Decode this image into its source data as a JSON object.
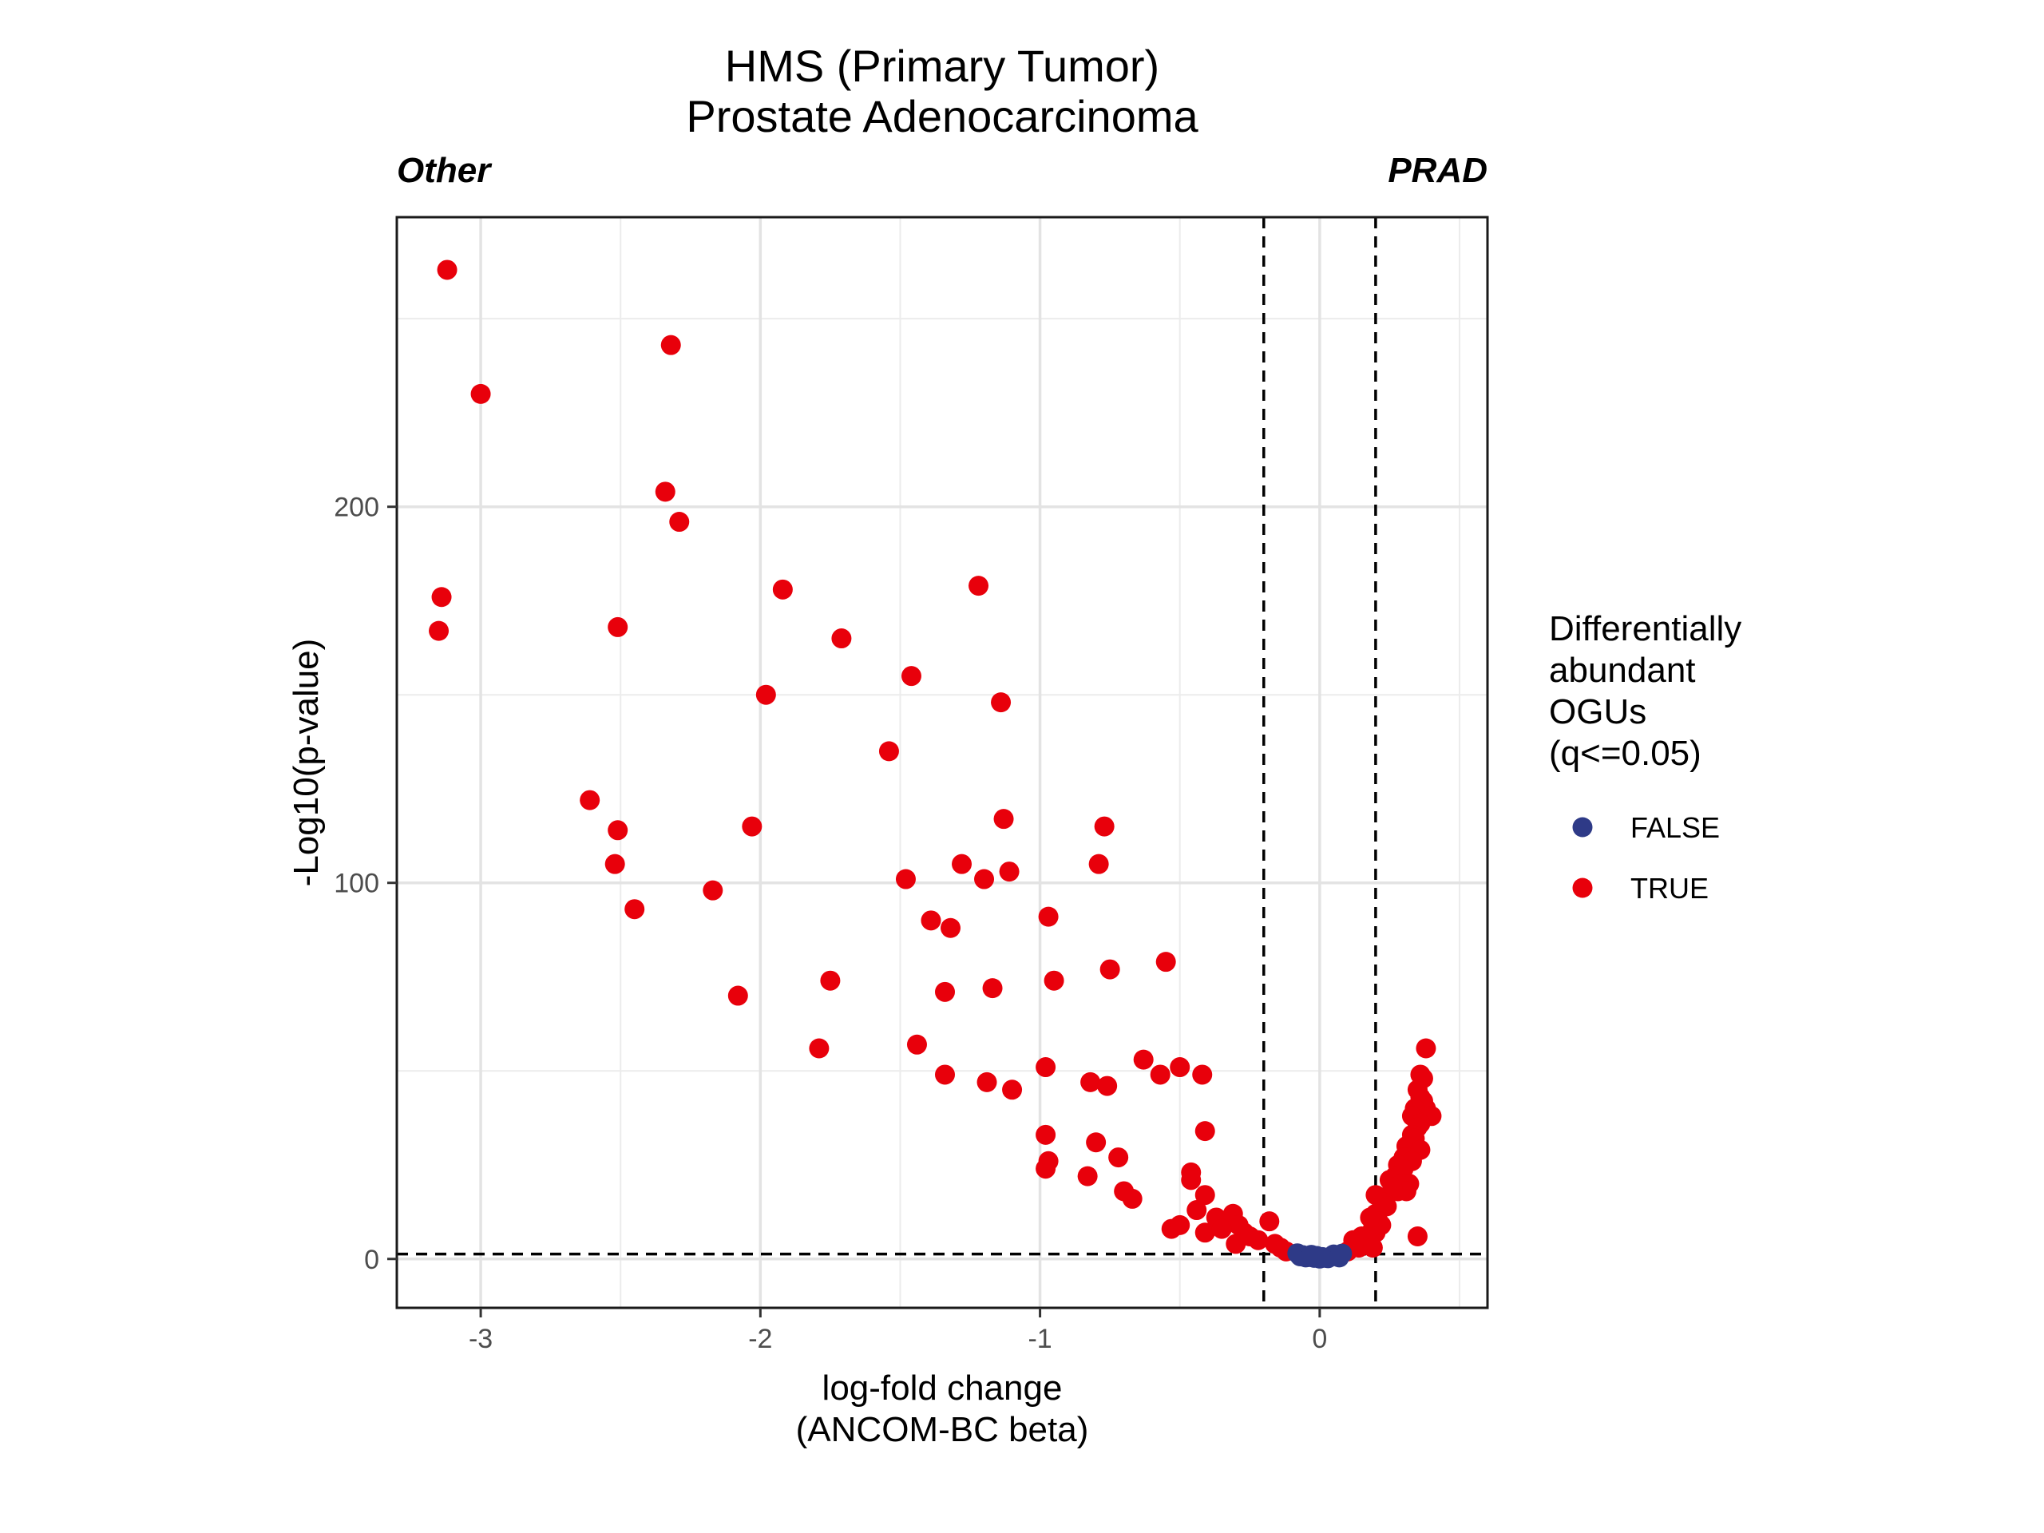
{
  "chart_data": {
    "type": "scatter",
    "title_lines": [
      "HMS (Primary Tumor)",
      "Prostate Adenocarcinoma"
    ],
    "left_group_label": "Other",
    "right_group_label": "PRAD",
    "xlabel_lines": [
      "log-fold change",
      "(ANCOM-BC beta)"
    ],
    "ylabel": "-Log10(p-value)",
    "xlim": [
      -3.3,
      0.6
    ],
    "ylim": [
      -13,
      277
    ],
    "x_ticks": [
      -3,
      -2,
      -1,
      0
    ],
    "x_tick_labels": [
      "-3",
      "-2",
      "-1",
      "0"
    ],
    "y_ticks": [
      0,
      100,
      200
    ],
    "y_tick_labels": [
      "0",
      "100",
      "200"
    ],
    "grid": true,
    "thresholds": {
      "vertical": [
        -0.2,
        0.2
      ],
      "horizontal": 1.3
    },
    "legend": {
      "title_lines": [
        "Differentially",
        "abundant",
        "OGUs",
        "(q<=0.05)"
      ],
      "placement": "right",
      "entries": [
        {
          "label": "FALSE",
          "color": "#2e3a87"
        },
        {
          "label": "TRUE",
          "color": "#e8000b"
        }
      ]
    },
    "series": [
      {
        "name": "FALSE",
        "color": "#2e3a87",
        "points": [
          [
            -0.08,
            1.5
          ],
          [
            -0.06,
            1.0
          ],
          [
            -0.04,
            0.5
          ],
          [
            -0.02,
            0.3
          ],
          [
            0.0,
            0.1
          ],
          [
            0.02,
            0.3
          ],
          [
            0.04,
            0.6
          ],
          [
            0.06,
            0.9
          ],
          [
            -0.05,
            0.4
          ],
          [
            0.03,
            0.2
          ],
          [
            -0.01,
            0.8
          ],
          [
            0.05,
            1.2
          ],
          [
            -0.07,
            0.7
          ],
          [
            0.01,
            0.5
          ],
          [
            -0.03,
            1.1
          ],
          [
            0.07,
            0.4
          ],
          [
            0.08,
            1.4
          ]
        ]
      },
      {
        "name": "TRUE",
        "color": "#e8000b",
        "points": [
          [
            -3.12,
            263
          ],
          [
            -3.0,
            230
          ],
          [
            -3.14,
            176
          ],
          [
            -3.15,
            167
          ],
          [
            -2.32,
            243
          ],
          [
            -2.34,
            204
          ],
          [
            -2.29,
            196
          ],
          [
            -2.51,
            168
          ],
          [
            -1.92,
            178
          ],
          [
            -1.71,
            165
          ],
          [
            -1.98,
            150
          ],
          [
            -2.61,
            122
          ],
          [
            -2.51,
            114
          ],
          [
            -2.03,
            115
          ],
          [
            -2.52,
            105
          ],
          [
            -2.45,
            93
          ],
          [
            -2.17,
            98
          ],
          [
            -2.08,
            70
          ],
          [
            -1.75,
            74
          ],
          [
            -1.79,
            56
          ],
          [
            -1.22,
            179
          ],
          [
            -1.46,
            155
          ],
          [
            -1.14,
            148
          ],
          [
            -1.54,
            135
          ],
          [
            -1.13,
            117
          ],
          [
            -0.77,
            115
          ],
          [
            -1.28,
            105
          ],
          [
            -1.11,
            103
          ],
          [
            -1.48,
            101
          ],
          [
            -1.2,
            101
          ],
          [
            -0.79,
            105
          ],
          [
            -0.97,
            91
          ],
          [
            -1.39,
            90
          ],
          [
            -1.32,
            88
          ],
          [
            -0.55,
            79
          ],
          [
            -0.75,
            77
          ],
          [
            -0.95,
            74
          ],
          [
            -1.17,
            72
          ],
          [
            -1.34,
            71
          ],
          [
            -1.44,
            57
          ],
          [
            -0.63,
            53
          ],
          [
            -0.5,
            51
          ],
          [
            -0.98,
            51
          ],
          [
            -0.57,
            49
          ],
          [
            -1.34,
            49
          ],
          [
            -0.42,
            49
          ],
          [
            -1.19,
            47
          ],
          [
            -1.1,
            45
          ],
          [
            -0.82,
            47
          ],
          [
            -0.76,
            46
          ],
          [
            -0.41,
            34
          ],
          [
            -0.98,
            33
          ],
          [
            -0.8,
            31
          ],
          [
            -0.72,
            27
          ],
          [
            -0.97,
            26
          ],
          [
            -0.98,
            24
          ],
          [
            -0.46,
            23
          ],
          [
            -0.46,
            21
          ],
          [
            -0.83,
            22
          ],
          [
            -0.7,
            18
          ],
          [
            -0.67,
            16
          ],
          [
            -0.41,
            17
          ],
          [
            -0.44,
            13
          ],
          [
            -0.37,
            11
          ],
          [
            -0.31,
            12
          ],
          [
            -0.18,
            10
          ],
          [
            -0.53,
            8
          ],
          [
            -0.5,
            9
          ],
          [
            -0.41,
            7
          ],
          [
            -0.27,
            7
          ],
          [
            -0.3,
            4
          ],
          [
            -0.22,
            5
          ],
          [
            -0.14,
            3
          ],
          [
            -0.29,
            9
          ],
          [
            -0.25,
            6
          ],
          [
            -0.35,
            8
          ],
          [
            -0.12,
            2
          ],
          [
            -0.16,
            4
          ],
          [
            0.38,
            56
          ],
          [
            0.36,
            49
          ],
          [
            0.37,
            48
          ],
          [
            0.35,
            45
          ],
          [
            0.36,
            43
          ],
          [
            0.37,
            42
          ],
          [
            0.38,
            40
          ],
          [
            0.34,
            40
          ],
          [
            0.4,
            38
          ],
          [
            0.33,
            38
          ],
          [
            0.36,
            36
          ],
          [
            0.35,
            35
          ],
          [
            0.33,
            33
          ],
          [
            0.34,
            32
          ],
          [
            0.31,
            30
          ],
          [
            0.36,
            29
          ],
          [
            0.3,
            27
          ],
          [
            0.33,
            26
          ],
          [
            0.28,
            25
          ],
          [
            0.3,
            24
          ],
          [
            0.27,
            22
          ],
          [
            0.25,
            21
          ],
          [
            0.29,
            20
          ],
          [
            0.32,
            20
          ],
          [
            0.28,
            18
          ],
          [
            0.31,
            18
          ],
          [
            0.26,
            19
          ],
          [
            0.2,
            17
          ],
          [
            0.23,
            15
          ],
          [
            0.24,
            14
          ],
          [
            0.2,
            12
          ],
          [
            0.21,
            10
          ],
          [
            0.19,
            8
          ],
          [
            0.2,
            7
          ],
          [
            0.15,
            6
          ],
          [
            0.12,
            5
          ],
          [
            0.35,
            6
          ],
          [
            0.17,
            5
          ],
          [
            0.14,
            3
          ],
          [
            0.1,
            2
          ],
          [
            0.19,
            3
          ],
          [
            0.22,
            9
          ],
          [
            0.18,
            11
          ]
        ]
      }
    ]
  }
}
